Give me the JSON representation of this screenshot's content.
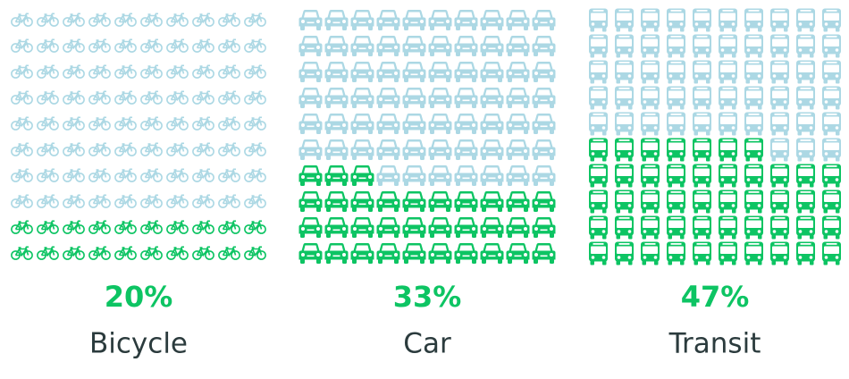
{
  "chart_data": {
    "type": "waffle",
    "categories": [
      "Bicycle",
      "Car",
      "Transit"
    ],
    "values": [
      20,
      33,
      47
    ],
    "value_labels": [
      "20%",
      "33%",
      "47%"
    ],
    "color": "#0dc463",
    "empty_color": "#acd8e4"
  }
}
